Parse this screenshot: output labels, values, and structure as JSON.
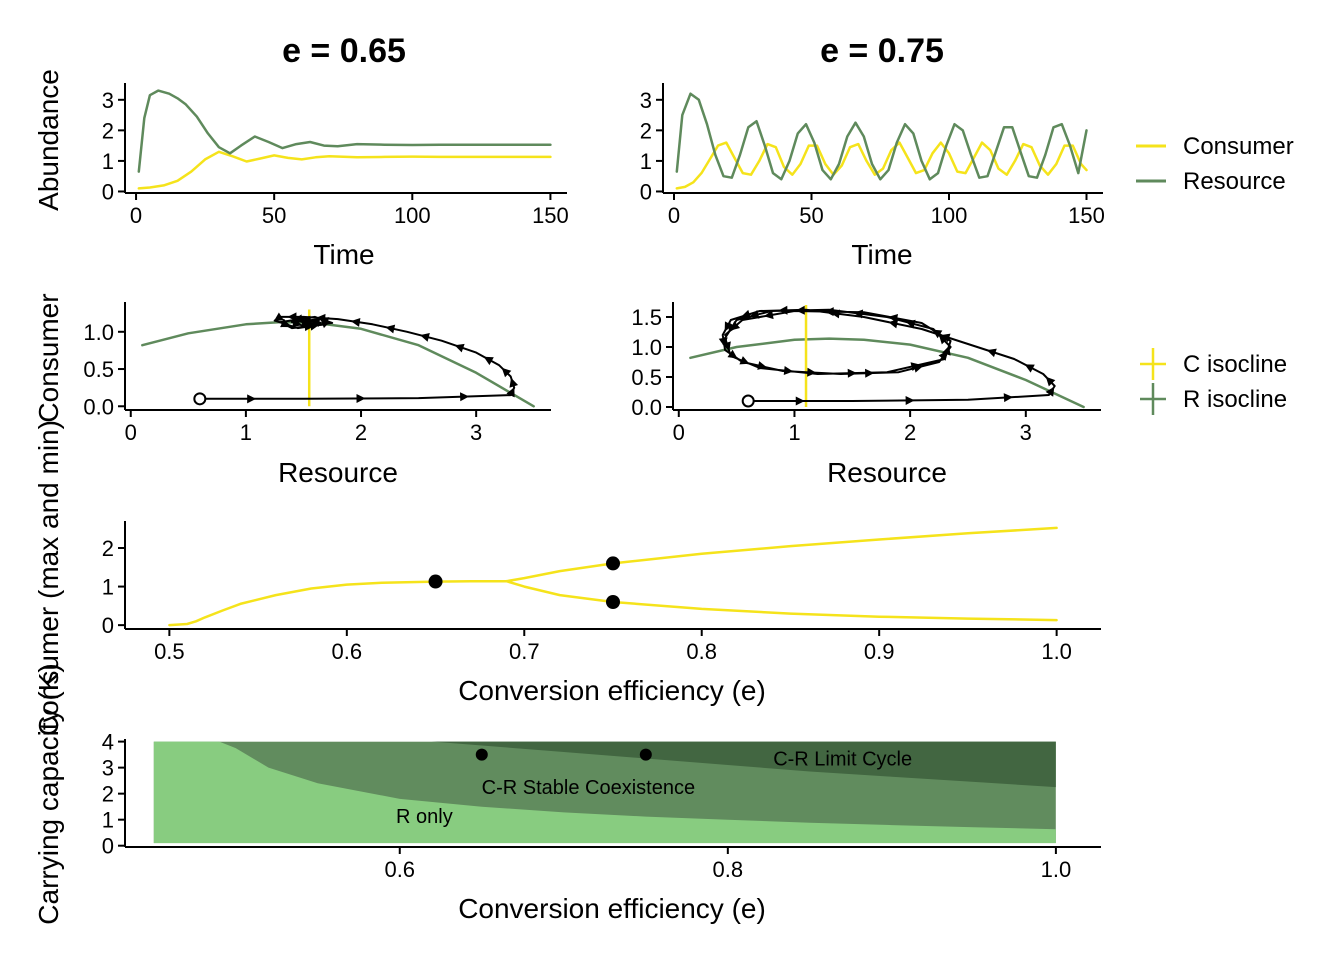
{
  "colors": {
    "consumer": "#f5e31b",
    "resource": "#5f8a5c",
    "region_r_only": "#88cc80",
    "region_stable": "#618c5e",
    "region_cycle": "#426641",
    "black": "#000000"
  },
  "chart_data": [
    {
      "id": "timeseries_065",
      "type": "line",
      "title": "e = 0.65",
      "xlabel": "Time",
      "ylabel": "Abundance",
      "xlim": [
        -4,
        156
      ],
      "ylim": [
        -0.05,
        3.55
      ],
      "xticks": [
        0,
        50,
        100,
        150
      ],
      "yticks": [
        0,
        1,
        2,
        3
      ],
      "series": [
        {
          "name": "Consumer",
          "color_key": "consumer",
          "x": [
            1,
            5,
            10,
            15,
            20,
            25,
            30,
            35,
            40,
            45,
            50,
            55,
            60,
            65,
            70,
            80,
            90,
            100,
            110,
            120,
            130,
            140,
            150
          ],
          "y": [
            0.1,
            0.13,
            0.2,
            0.35,
            0.65,
            1.05,
            1.3,
            1.15,
            0.98,
            1.08,
            1.18,
            1.1,
            1.05,
            1.12,
            1.15,
            1.12,
            1.13,
            1.14,
            1.13,
            1.13,
            1.13,
            1.13,
            1.13
          ]
        },
        {
          "name": "Resource",
          "color_key": "resource",
          "x": [
            1,
            3,
            5,
            8,
            12,
            15,
            18,
            22,
            26,
            30,
            34,
            38,
            43,
            48,
            53,
            58,
            63,
            68,
            73,
            80,
            90,
            100,
            110,
            120,
            130,
            140,
            150
          ],
          "y": [
            0.65,
            2.4,
            3.15,
            3.3,
            3.2,
            3.05,
            2.85,
            2.45,
            1.9,
            1.45,
            1.25,
            1.5,
            1.8,
            1.62,
            1.42,
            1.55,
            1.62,
            1.5,
            1.48,
            1.55,
            1.53,
            1.52,
            1.53,
            1.53,
            1.53,
            1.53,
            1.53
          ]
        }
      ]
    },
    {
      "id": "timeseries_075",
      "type": "line",
      "title": "e = 0.75",
      "xlabel": "Time",
      "ylabel": "",
      "xlim": [
        -4,
        156
      ],
      "ylim": [
        -0.05,
        3.55
      ],
      "xticks": [
        0,
        50,
        100,
        150
      ],
      "yticks": [
        0,
        1,
        2,
        3
      ],
      "series": [
        {
          "name": "Consumer",
          "color_key": "consumer",
          "x": [
            1,
            4,
            7,
            10,
            13,
            16,
            19,
            22,
            25,
            28,
            31,
            34,
            37,
            40,
            43,
            46,
            49,
            52,
            55,
            58,
            61,
            64,
            67,
            70,
            73,
            76,
            79,
            82,
            85,
            88,
            91,
            94,
            97,
            100,
            103,
            106,
            109,
            112,
            115,
            118,
            121,
            124,
            127,
            130,
            133,
            136,
            139,
            142,
            145,
            148,
            150
          ],
          "y": [
            0.1,
            0.15,
            0.3,
            0.6,
            1.05,
            1.5,
            1.6,
            1.1,
            0.6,
            0.55,
            1.0,
            1.55,
            1.45,
            0.8,
            0.55,
            0.9,
            1.5,
            1.5,
            0.9,
            0.55,
            0.85,
            1.45,
            1.55,
            1.0,
            0.55,
            0.75,
            1.35,
            1.6,
            1.1,
            0.6,
            0.7,
            1.25,
            1.6,
            1.25,
            0.65,
            0.6,
            1.1,
            1.6,
            1.35,
            0.75,
            0.55,
            1.0,
            1.55,
            1.45,
            0.85,
            0.55,
            0.9,
            1.5,
            1.5,
            0.9,
            0.7
          ]
        },
        {
          "name": "Resource",
          "color_key": "resource",
          "x": [
            1,
            3,
            6,
            9,
            12,
            15,
            18,
            21,
            24,
            27,
            30,
            33,
            36,
            39,
            42,
            45,
            48,
            51,
            54,
            57,
            60,
            63,
            66,
            69,
            72,
            75,
            78,
            81,
            84,
            87,
            90,
            93,
            96,
            99,
            102,
            105,
            108,
            111,
            114,
            117,
            120,
            123,
            126,
            129,
            132,
            135,
            138,
            141,
            144,
            147,
            150
          ],
          "y": [
            0.65,
            2.5,
            3.2,
            3.0,
            2.2,
            1.2,
            0.5,
            0.45,
            1.2,
            2.1,
            2.3,
            1.5,
            0.6,
            0.4,
            1.0,
            1.9,
            2.2,
            1.6,
            0.7,
            0.4,
            0.9,
            1.8,
            2.25,
            1.8,
            0.9,
            0.4,
            0.7,
            1.6,
            2.2,
            1.9,
            1.0,
            0.4,
            0.6,
            1.5,
            2.2,
            2.0,
            1.2,
            0.45,
            0.5,
            1.3,
            2.1,
            2.1,
            1.3,
            0.5,
            0.45,
            1.2,
            2.1,
            2.2,
            1.5,
            0.6,
            2.0
          ]
        }
      ]
    },
    {
      "id": "phase_065",
      "type": "line",
      "xlabel": "Resource",
      "ylabel": "Consumer",
      "xlim": [
        -0.05,
        3.65
      ],
      "ylim": [
        -0.05,
        1.4
      ],
      "xticks": [
        0,
        1,
        2,
        3
      ],
      "yticks": [
        0.0,
        0.5,
        1.0
      ],
      "c_isocline_x": 1.55,
      "c_isocline_ymax": 1.3,
      "r_isocline": {
        "x": [
          0.1,
          0.5,
          1.0,
          1.3,
          1.6,
          2.0,
          2.5,
          3.0,
          3.5
        ],
        "y": [
          0.82,
          0.98,
          1.1,
          1.13,
          1.12,
          1.04,
          0.82,
          0.45,
          0.0
        ]
      },
      "start": [
        0.6,
        0.1
      ],
      "trajectory": {
        "x": [
          0.6,
          1.5,
          2.5,
          3.3,
          3.33,
          3.3,
          3.2,
          3.0,
          2.7,
          2.4,
          2.1,
          1.8,
          1.5,
          1.3,
          1.25,
          1.45,
          1.75,
          1.6,
          1.3,
          1.4,
          1.7,
          1.65,
          1.4,
          1.5,
          1.65,
          1.55,
          1.5,
          1.55
        ],
        "y": [
          0.1,
          0.1,
          0.11,
          0.15,
          0.25,
          0.4,
          0.55,
          0.72,
          0.88,
          1.0,
          1.1,
          1.17,
          1.2,
          1.2,
          1.15,
          1.05,
          1.12,
          1.2,
          1.13,
          1.05,
          1.1,
          1.17,
          1.13,
          1.08,
          1.12,
          1.15,
          1.12,
          1.13
        ]
      }
    },
    {
      "id": "phase_075",
      "type": "line",
      "xlabel": "Resource",
      "ylabel": "",
      "xlim": [
        -0.05,
        3.65
      ],
      "ylim": [
        -0.05,
        1.75
      ],
      "xticks": [
        0,
        1,
        2,
        3
      ],
      "yticks": [
        0.0,
        0.5,
        1.0,
        1.5
      ],
      "c_isocline_x": 1.1,
      "c_isocline_ymax": 1.7,
      "r_isocline": {
        "x": [
          0.1,
          0.5,
          1.0,
          1.3,
          1.6,
          2.0,
          2.5,
          3.0,
          3.5
        ],
        "y": [
          0.82,
          1.0,
          1.12,
          1.14,
          1.12,
          1.04,
          0.82,
          0.45,
          0.0
        ]
      },
      "start": [
        0.6,
        0.1
      ],
      "trajectory": {
        "x": [
          0.6,
          1.5,
          2.5,
          3.2,
          3.25,
          3.15,
          2.9,
          2.5,
          2.1,
          1.6,
          1.1,
          0.7,
          0.45,
          0.38,
          0.4,
          0.55,
          0.9,
          1.4,
          1.9,
          2.25,
          2.35,
          2.2,
          1.8,
          1.3,
          0.8,
          0.5,
          0.4,
          0.45,
          0.7,
          1.2,
          1.8,
          2.3,
          2.35,
          2.1,
          1.6,
          1.0,
          0.55,
          0.4
        ],
        "y": [
          0.1,
          0.1,
          0.12,
          0.2,
          0.35,
          0.55,
          0.8,
          1.05,
          1.3,
          1.5,
          1.62,
          1.6,
          1.45,
          1.2,
          0.95,
          0.75,
          0.6,
          0.55,
          0.58,
          0.75,
          1.0,
          1.3,
          1.5,
          1.62,
          1.6,
          1.45,
          1.15,
          0.85,
          0.65,
          0.55,
          0.58,
          0.8,
          1.1,
          1.4,
          1.58,
          1.6,
          1.45,
          1.2
        ]
      }
    },
    {
      "id": "bifurcation",
      "type": "line",
      "xlabel": "Conversion efficiency (e)",
      "ylabel": "Consumer (max and min)",
      "xlim": [
        0.475,
        1.025
      ],
      "ylim": [
        -0.1,
        2.7
      ],
      "xticks": [
        0.5,
        0.6,
        0.7,
        0.8,
        0.9,
        1.0
      ],
      "xtick_labels": [
        "0.5",
        "0.6",
        "0.7",
        "0.8",
        "0.9",
        "1.0"
      ],
      "yticks": [
        0,
        1,
        2
      ],
      "series": [
        {
          "name": "",
          "color_key": "consumer",
          "x": [
            0.5,
            0.51,
            0.515,
            0.52,
            0.53,
            0.54,
            0.56,
            0.58,
            0.6,
            0.62,
            0.65,
            0.67,
            0.69,
            0.7,
            0.72,
            0.75,
            0.8,
            0.85,
            0.9,
            0.95,
            1.0
          ],
          "y": [
            0.0,
            0.03,
            0.1,
            0.2,
            0.38,
            0.55,
            0.78,
            0.95,
            1.05,
            1.1,
            1.13,
            1.14,
            1.14,
            1.22,
            1.4,
            1.6,
            1.85,
            2.05,
            2.22,
            2.38,
            2.52
          ]
        },
        {
          "name": "",
          "color_key": "consumer",
          "x": [
            0.69,
            0.7,
            0.72,
            0.75,
            0.8,
            0.85,
            0.9,
            0.95,
            1.0
          ],
          "y": [
            1.14,
            1.0,
            0.78,
            0.6,
            0.42,
            0.3,
            0.22,
            0.17,
            0.13
          ]
        }
      ],
      "points": [
        {
          "x": 0.65,
          "y": 1.13
        },
        {
          "x": 0.75,
          "y": 1.6
        },
        {
          "x": 0.75,
          "y": 0.6
        }
      ]
    },
    {
      "id": "regions",
      "type": "heatmap",
      "xlabel": "Conversion efficiency (e)",
      "ylabel": "Carrying capacity (K)",
      "xlim": [
        0.4325,
        1.0275
      ],
      "ylim": [
        -0.05,
        4.1
      ],
      "xticks": [
        0.6,
        0.8,
        1.0
      ],
      "xtick_labels": [
        "0.6",
        "0.8",
        "1.0"
      ],
      "yticks": [
        0,
        1,
        2,
        3,
        4
      ],
      "x_min": 0.45,
      "x_max": 1.0,
      "y_min": 0.1,
      "y_max": 4.0,
      "boundary_r_only": {
        "x": [
          0.49,
          0.5,
          0.52,
          0.55,
          0.6,
          0.65,
          0.7,
          0.75,
          0.8,
          0.85,
          0.9,
          0.95,
          1.0
        ],
        "y": [
          4.0,
          3.75,
          3.0,
          2.4,
          1.8,
          1.5,
          1.28,
          1.12,
          1.0,
          0.88,
          0.79,
          0.71,
          0.63
        ]
      },
      "boundary_cycle": {
        "x": [
          0.6,
          0.65,
          0.7,
          0.75,
          0.8,
          0.85,
          0.9,
          0.95,
          1.0
        ],
        "y": [
          4.1,
          3.85,
          3.6,
          3.35,
          3.1,
          2.85,
          2.65,
          2.45,
          2.25
        ]
      },
      "labels": [
        {
          "text": "R only",
          "x": 0.615,
          "y": 1.15
        },
        {
          "text": "C-R Stable Coexistence",
          "x": 0.715,
          "y": 2.25
        },
        {
          "text": "C-R Limit Cycle",
          "x": 0.87,
          "y": 3.35
        }
      ],
      "points": [
        {
          "x": 0.65,
          "y": 3.5
        },
        {
          "x": 0.75,
          "y": 3.5
        }
      ]
    }
  ],
  "legend_timeseries": [
    {
      "name": "Consumer",
      "color_key": "consumer"
    },
    {
      "name": "Resource",
      "color_key": "resource"
    }
  ],
  "legend_phase": [
    {
      "name": "C isocline",
      "color_key": "consumer"
    },
    {
      "name": "R isocline",
      "color_key": "resource"
    }
  ]
}
